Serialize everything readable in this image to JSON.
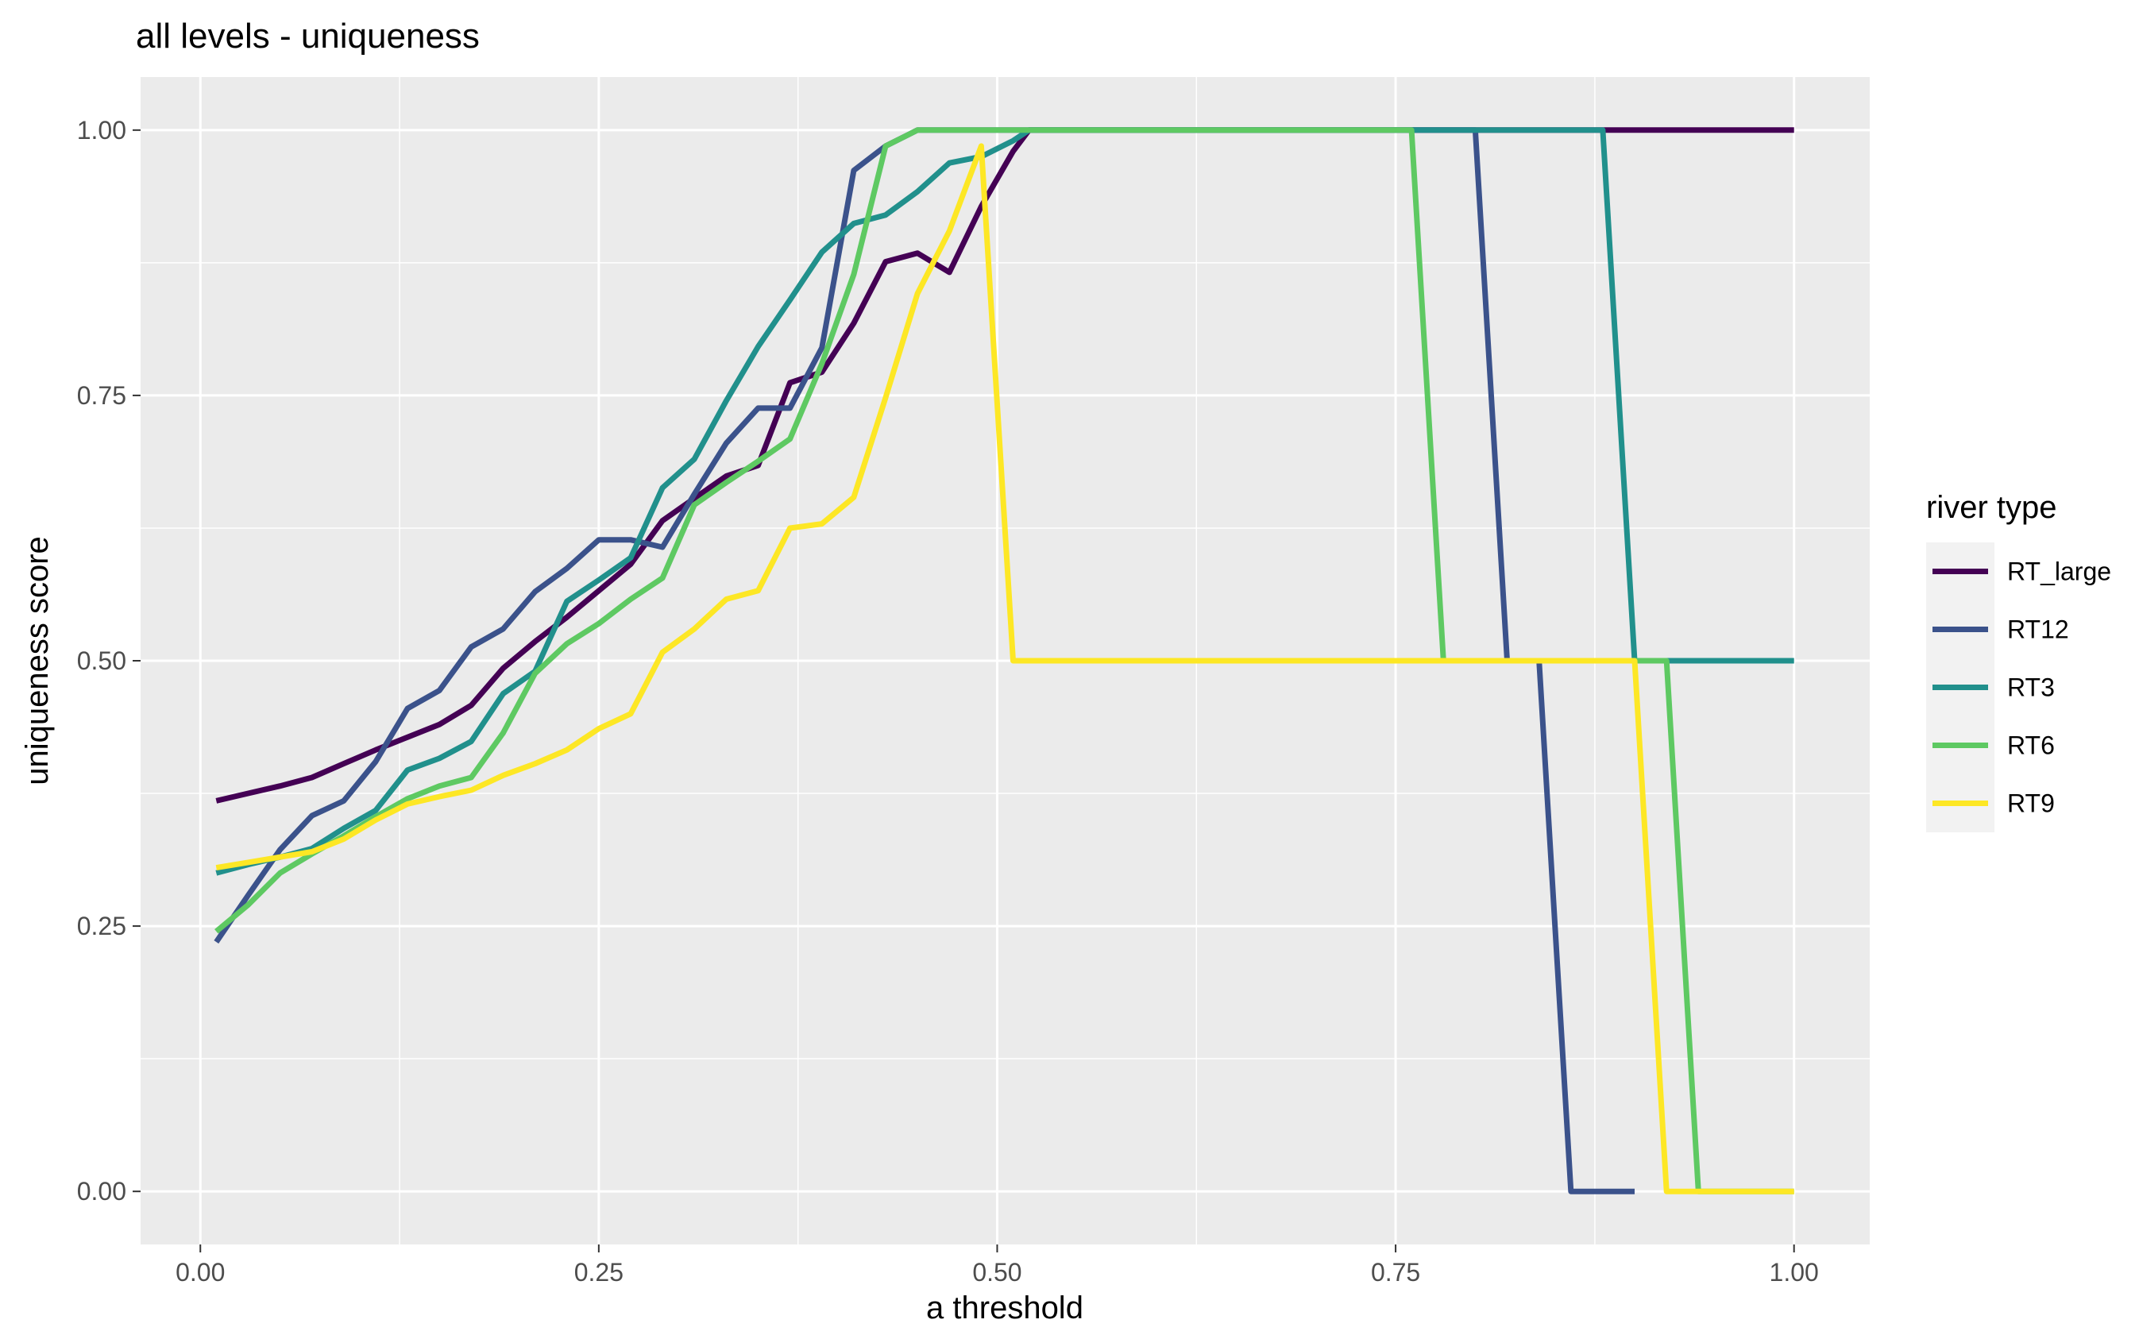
{
  "chart_data": {
    "type": "line",
    "title": "all levels - uniqueness",
    "xlabel": "a threshold",
    "ylabel": "uniqueness score",
    "xlim": [
      -0.0375,
      1.0475
    ],
    "ylim": [
      -0.05,
      1.05
    ],
    "xticks": [
      "0.00",
      "0.25",
      "0.50",
      "0.75",
      "1.00"
    ],
    "yticks": [
      "0.00",
      "0.25",
      "0.50",
      "0.75",
      "1.00"
    ],
    "grid": true,
    "legend": {
      "title": "river type",
      "position": "right"
    },
    "series": [
      {
        "name": "RT_large",
        "color": "#440154",
        "points": [
          [
            0.01,
            0.368
          ],
          [
            0.03,
            0.375
          ],
          [
            0.05,
            0.382
          ],
          [
            0.07,
            0.39
          ],
          [
            0.09,
            0.403
          ],
          [
            0.11,
            0.416
          ],
          [
            0.13,
            0.428
          ],
          [
            0.15,
            0.44
          ],
          [
            0.17,
            0.458
          ],
          [
            0.19,
            0.493
          ],
          [
            0.21,
            0.518
          ],
          [
            0.23,
            0.541
          ],
          [
            0.25,
            0.566
          ],
          [
            0.27,
            0.591
          ],
          [
            0.29,
            0.632
          ],
          [
            0.31,
            0.653
          ],
          [
            0.33,
            0.674
          ],
          [
            0.35,
            0.684
          ],
          [
            0.37,
            0.762
          ],
          [
            0.39,
            0.772
          ],
          [
            0.41,
            0.818
          ],
          [
            0.43,
            0.876
          ],
          [
            0.45,
            0.884
          ],
          [
            0.47,
            0.866
          ],
          [
            0.49,
            0.928
          ],
          [
            0.51,
            0.98
          ],
          [
            0.52,
            1.0
          ],
          [
            0.6,
            1.0
          ],
          [
            0.7,
            1.0
          ],
          [
            0.8,
            1.0
          ],
          [
            0.9,
            1.0
          ],
          [
            1.0,
            1.0
          ]
        ]
      },
      {
        "name": "RT12",
        "color": "#3b528b",
        "points": [
          [
            0.01,
            0.235
          ],
          [
            0.03,
            0.279
          ],
          [
            0.05,
            0.322
          ],
          [
            0.07,
            0.354
          ],
          [
            0.09,
            0.368
          ],
          [
            0.11,
            0.405
          ],
          [
            0.13,
            0.455
          ],
          [
            0.15,
            0.472
          ],
          [
            0.17,
            0.513
          ],
          [
            0.19,
            0.53
          ],
          [
            0.21,
            0.565
          ],
          [
            0.23,
            0.587
          ],
          [
            0.25,
            0.614
          ],
          [
            0.27,
            0.614
          ],
          [
            0.29,
            0.607
          ],
          [
            0.31,
            0.657
          ],
          [
            0.33,
            0.705
          ],
          [
            0.35,
            0.738
          ],
          [
            0.37,
            0.738
          ],
          [
            0.39,
            0.795
          ],
          [
            0.41,
            0.962
          ],
          [
            0.43,
            0.985
          ],
          [
            0.45,
            1.0
          ],
          [
            0.8,
            1.0
          ],
          [
            0.82,
            0.5
          ],
          [
            0.84,
            0.5
          ],
          [
            0.86,
            0.0
          ],
          [
            0.88,
            0.0
          ],
          [
            0.9,
            0.0
          ]
        ]
      },
      {
        "name": "RT3",
        "color": "#21908c",
        "points": [
          [
            0.01,
            0.3
          ],
          [
            0.03,
            0.308
          ],
          [
            0.05,
            0.315
          ],
          [
            0.07,
            0.323
          ],
          [
            0.09,
            0.342
          ],
          [
            0.11,
            0.359
          ],
          [
            0.13,
            0.397
          ],
          [
            0.15,
            0.408
          ],
          [
            0.17,
            0.424
          ],
          [
            0.19,
            0.469
          ],
          [
            0.21,
            0.49
          ],
          [
            0.23,
            0.556
          ],
          [
            0.25,
            0.576
          ],
          [
            0.27,
            0.597
          ],
          [
            0.29,
            0.663
          ],
          [
            0.31,
            0.69
          ],
          [
            0.33,
            0.745
          ],
          [
            0.35,
            0.796
          ],
          [
            0.37,
            0.84
          ],
          [
            0.39,
            0.885
          ],
          [
            0.41,
            0.912
          ],
          [
            0.43,
            0.92
          ],
          [
            0.45,
            0.942
          ],
          [
            0.47,
            0.969
          ],
          [
            0.49,
            0.975
          ],
          [
            0.51,
            0.99
          ],
          [
            0.52,
            1.0
          ],
          [
            0.88,
            1.0
          ],
          [
            0.9,
            0.5
          ],
          [
            1.0,
            0.5
          ]
        ]
      },
      {
        "name": "RT6",
        "color": "#5ec962",
        "points": [
          [
            0.01,
            0.245
          ],
          [
            0.03,
            0.27
          ],
          [
            0.05,
            0.3
          ],
          [
            0.07,
            0.318
          ],
          [
            0.09,
            0.335
          ],
          [
            0.11,
            0.353
          ],
          [
            0.13,
            0.37
          ],
          [
            0.15,
            0.382
          ],
          [
            0.17,
            0.39
          ],
          [
            0.19,
            0.432
          ],
          [
            0.21,
            0.488
          ],
          [
            0.23,
            0.516
          ],
          [
            0.25,
            0.535
          ],
          [
            0.27,
            0.558
          ],
          [
            0.29,
            0.578
          ],
          [
            0.31,
            0.647
          ],
          [
            0.33,
            0.668
          ],
          [
            0.35,
            0.688
          ],
          [
            0.37,
            0.709
          ],
          [
            0.39,
            0.78
          ],
          [
            0.41,
            0.864
          ],
          [
            0.43,
            0.985
          ],
          [
            0.45,
            1.0
          ],
          [
            0.76,
            1.0
          ],
          [
            0.78,
            0.5
          ],
          [
            0.8,
            0.5
          ],
          [
            0.9,
            0.5
          ],
          [
            0.92,
            0.5
          ],
          [
            0.94,
            0.0
          ],
          [
            1.0,
            0.0
          ]
        ]
      },
      {
        "name": "RT9",
        "color": "#fde725",
        "points": [
          [
            0.01,
            0.305
          ],
          [
            0.03,
            0.31
          ],
          [
            0.05,
            0.315
          ],
          [
            0.07,
            0.32
          ],
          [
            0.09,
            0.332
          ],
          [
            0.11,
            0.35
          ],
          [
            0.13,
            0.365
          ],
          [
            0.15,
            0.372
          ],
          [
            0.17,
            0.378
          ],
          [
            0.19,
            0.392
          ],
          [
            0.21,
            0.403
          ],
          [
            0.23,
            0.416
          ],
          [
            0.25,
            0.436
          ],
          [
            0.27,
            0.45
          ],
          [
            0.29,
            0.508
          ],
          [
            0.31,
            0.53
          ],
          [
            0.33,
            0.558
          ],
          [
            0.35,
            0.566
          ],
          [
            0.37,
            0.625
          ],
          [
            0.39,
            0.629
          ],
          [
            0.41,
            0.654
          ],
          [
            0.43,
            0.748
          ],
          [
            0.45,
            0.846
          ],
          [
            0.47,
            0.905
          ],
          [
            0.49,
            0.985
          ],
          [
            0.51,
            0.5
          ],
          [
            0.6,
            0.5
          ],
          [
            0.7,
            0.5
          ],
          [
            0.8,
            0.5
          ],
          [
            0.9,
            0.5
          ],
          [
            0.92,
            0.0
          ],
          [
            1.0,
            0.0
          ]
        ]
      }
    ]
  }
}
